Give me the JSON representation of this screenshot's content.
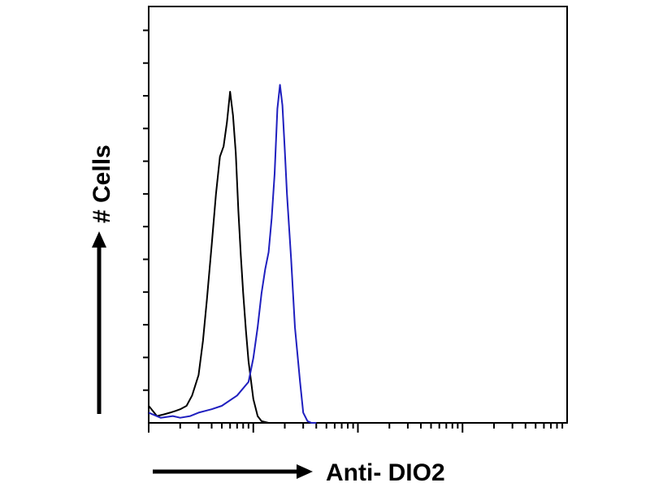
{
  "chart_data": {
    "type": "area",
    "title": "",
    "xlabel": "Anti- DIO2",
    "ylabel": "# Cells",
    "x_scale": "log",
    "xlim": [
      1,
      10000
    ],
    "ylim": [
      0,
      100
    ],
    "grid": false,
    "legend": "none",
    "series": [
      {
        "color": "#000000",
        "x": [
          1.0,
          1.2,
          1.4,
          1.6,
          1.8,
          2.0,
          2.3,
          2.6,
          3.0,
          3.3,
          3.6,
          4.0,
          4.4,
          4.8,
          5.2,
          5.6,
          6.0,
          6.4,
          6.8,
          7.2,
          7.6,
          8.0,
          8.5,
          9.0,
          10.0,
          11.0,
          12.0,
          14.0,
          15.0,
          16.0,
          20.0
        ],
        "y": [
          5,
          2,
          2.5,
          3,
          3.5,
          4,
          5,
          8,
          14,
          24,
          36,
          52,
          67,
          78,
          81,
          88,
          97,
          90,
          79,
          62,
          49,
          38,
          27,
          18,
          7,
          2,
          0.5,
          0,
          0,
          0,
          0
        ]
      },
      {
        "color": "#1f1fbf",
        "x": [
          1.0,
          1.3,
          1.7,
          2.0,
          2.5,
          3.0,
          4.0,
          5.0,
          7.0,
          9.0,
          10.0,
          11.0,
          12.0,
          13.0,
          14.0,
          15.0,
          16.0,
          17.0,
          18.0,
          19.0,
          20.0,
          21.0,
          23.0,
          25.0,
          28.0,
          30.0,
          33.0,
          36.0,
          40.0
        ],
        "y": [
          3,
          1.5,
          2,
          1.5,
          2,
          3,
          4,
          5,
          8,
          12,
          19,
          28,
          38,
          45,
          50,
          60,
          73,
          92,
          99,
          93,
          80,
          67,
          48,
          28,
          12,
          3,
          0.5,
          0,
          0
        ]
      }
    ]
  }
}
